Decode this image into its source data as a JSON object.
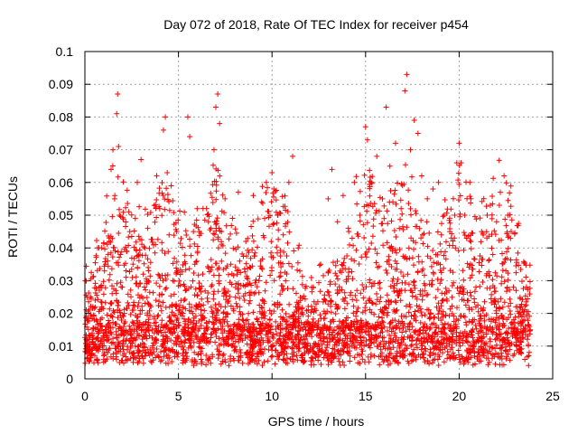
{
  "chart_data": {
    "type": "scatter",
    "title": "Day 072 of 2018, Rate Of TEC Index for receiver p454",
    "xlabel": "GPS time / hours",
    "ylabel": "ROTI / TECUs",
    "xlim": [
      0,
      25
    ],
    "ylim": [
      0,
      0.1
    ],
    "grid": true,
    "marker": "plus",
    "color": "#ff0000",
    "x_ticks": [
      0,
      5,
      10,
      15,
      20,
      25
    ],
    "x_tick_labels": [
      "0",
      "5",
      "10",
      "15",
      "20",
      "25"
    ],
    "y_ticks": [
      0,
      0.01,
      0.02,
      0.03,
      0.04,
      0.05,
      0.06,
      0.07,
      0.08,
      0.09,
      0.1
    ],
    "y_tick_labels": [
      "0",
      "0.01",
      "0.02",
      "0.03",
      "0.04",
      "0.05",
      "0.06",
      "0.07",
      "0.08",
      "0.09",
      "0.1"
    ],
    "series": [
      {
        "name": "p454",
        "x": [
          0.1,
          0.3,
          0.5,
          0.7,
          0.9,
          1.1,
          1.3,
          1.4,
          1.5,
          1.6,
          1.7,
          1.75,
          1.8,
          1.85,
          1.9,
          2.0,
          2.2,
          2.4,
          2.6,
          2.8,
          3.0,
          3.2,
          3.4,
          3.6,
          3.8,
          4.0,
          4.2,
          4.3,
          4.4,
          4.5,
          4.7,
          4.9,
          5.2,
          5.5,
          5.6,
          5.8,
          6.0,
          6.3,
          6.6,
          6.9,
          7.0,
          7.1,
          7.2,
          7.3,
          7.5,
          7.8,
          8.2,
          8.6,
          9.0,
          9.3,
          9.7,
          10.0,
          10.1,
          10.3,
          10.6,
          10.9,
          11.1,
          11.4,
          11.8,
          12.2,
          12.6,
          13.0,
          13.2,
          13.5,
          13.8,
          14.1,
          14.4,
          14.7,
          15.0,
          15.1,
          15.3,
          15.6,
          15.9,
          16.1,
          16.3,
          16.6,
          16.9,
          17.1,
          17.2,
          17.4,
          17.6,
          17.8,
          18.0,
          18.3,
          18.6,
          18.9,
          19.2,
          19.5,
          19.8,
          20.0,
          20.1,
          20.3,
          20.6,
          20.9,
          21.2,
          21.5,
          21.8,
          22.0,
          22.2,
          22.4,
          22.6,
          22.9,
          23.2,
          23.5,
          23.8
        ],
        "y": [
          0.012,
          0.025,
          0.018,
          0.009,
          0.022,
          0.035,
          0.042,
          0.064,
          0.07,
          0.056,
          0.081,
          0.087,
          0.071,
          0.05,
          0.038,
          0.028,
          0.033,
          0.045,
          0.021,
          0.06,
          0.067,
          0.04,
          0.033,
          0.015,
          0.024,
          0.052,
          0.076,
          0.08,
          0.063,
          0.044,
          0.03,
          0.018,
          0.02,
          0.08,
          0.074,
          0.045,
          0.052,
          0.032,
          0.048,
          0.07,
          0.083,
          0.087,
          0.078,
          0.045,
          0.022,
          0.035,
          0.057,
          0.042,
          0.056,
          0.03,
          0.06,
          0.063,
          0.058,
          0.05,
          0.044,
          0.06,
          0.068,
          0.04,
          0.015,
          0.028,
          0.035,
          0.055,
          0.064,
          0.048,
          0.056,
          0.045,
          0.06,
          0.05,
          0.077,
          0.073,
          0.06,
          0.068,
          0.055,
          0.083,
          0.065,
          0.072,
          0.052,
          0.088,
          0.093,
          0.07,
          0.079,
          0.075,
          0.062,
          0.055,
          0.058,
          0.06,
          0.05,
          0.045,
          0.04,
          0.072,
          0.066,
          0.05,
          0.035,
          0.028,
          0.045,
          0.05,
          0.038,
          0.048,
          0.057,
          0.062,
          0.05,
          0.028,
          0.02,
          0.018,
          0.015
        ]
      }
    ]
  }
}
